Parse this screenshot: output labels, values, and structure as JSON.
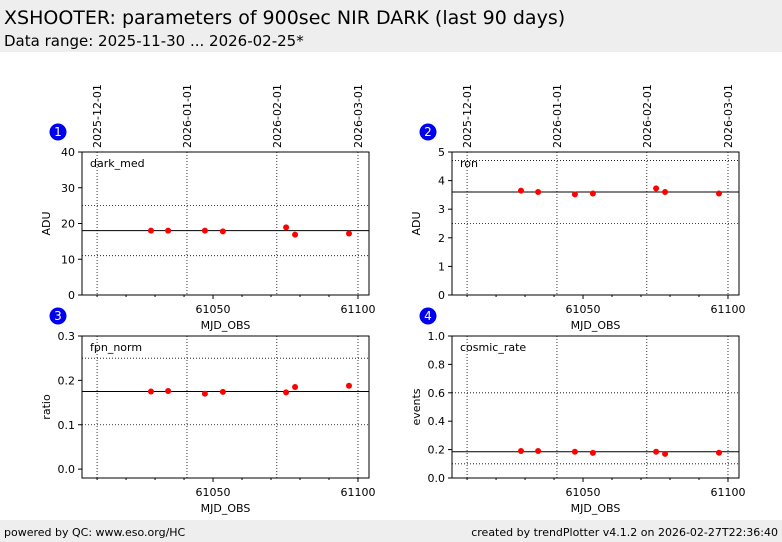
{
  "header": {
    "title": "XSHOOTER: parameters of 900sec NIR DARK (last 90 days)",
    "subtitle": "Data range: 2025-11-30 ... 2026-02-25*"
  },
  "footer": {
    "left": "powered by QC: www.eso.org/HC",
    "right": "created by trendPlotter v4.1.2 on 2026-02-27T22:36:40"
  },
  "colors": {
    "points": "#ff0000",
    "badge": "#0000ee",
    "header_bg": "#eeeeee"
  },
  "chart_data": [
    {
      "type": "scatter",
      "badge": "1",
      "label": "dark_med",
      "ylabel": "ADU",
      "xlabel": "MJD_OBS",
      "xlim": [
        61004.8,
        61103.8
      ],
      "ylim": [
        0,
        40
      ],
      "yticks": [
        0,
        10,
        20,
        30,
        40
      ],
      "ytick_labels": [
        "0",
        "10",
        "20",
        "30",
        "40"
      ],
      "xticks": [
        61050,
        61100
      ],
      "date_lines": [
        {
          "mjd": 61010,
          "label": "2025-12-01"
        },
        {
          "mjd": 61041,
          "label": "2026-01-01"
        },
        {
          "mjd": 61072,
          "label": "2026-02-01"
        },
        {
          "mjd": 61100,
          "label": "2026-03-01"
        }
      ],
      "x": [
        61028.6,
        61034.5,
        61047.2,
        61053.4,
        61075.2,
        61078.3,
        61096.9
      ],
      "y": [
        18.0,
        18.0,
        18.0,
        17.8,
        18.9,
        16.9,
        17.2
      ],
      "mean": 18.0,
      "limits": [
        11,
        25
      ]
    },
    {
      "type": "scatter",
      "badge": "2",
      "label": "ron",
      "ylabel": "ADU",
      "xlabel": "MJD_OBS",
      "xlim": [
        61004.8,
        61103.8
      ],
      "ylim": [
        0,
        5
      ],
      "yticks": [
        0,
        1,
        2,
        3,
        4,
        5
      ],
      "ytick_labels": [
        "0",
        "1",
        "2",
        "3",
        "4",
        "5"
      ],
      "xticks": [
        61050,
        61100
      ],
      "date_lines": [
        {
          "mjd": 61010,
          "label": "2025-12-01"
        },
        {
          "mjd": 61041,
          "label": "2026-01-01"
        },
        {
          "mjd": 61072,
          "label": "2026-02-01"
        },
        {
          "mjd": 61100,
          "label": "2026-03-01"
        }
      ],
      "x": [
        61028.6,
        61034.5,
        61047.2,
        61053.4,
        61075.2,
        61078.3,
        61096.9
      ],
      "y": [
        3.65,
        3.6,
        3.52,
        3.55,
        3.73,
        3.6,
        3.55
      ],
      "mean": 3.6,
      "limits": [
        2.5,
        4.7
      ]
    },
    {
      "type": "scatter",
      "badge": "3",
      "label": "fpn_norm",
      "ylabel": "ratio",
      "xlabel": "MJD_OBS",
      "xlim": [
        61004.8,
        61103.8
      ],
      "ylim": [
        -0.02,
        0.3
      ],
      "yticks": [
        0,
        0.1,
        0.2,
        0.3
      ],
      "ytick_labels": [
        "0.0",
        "0.1",
        "0.2",
        "0.3"
      ],
      "xticks": [
        61050,
        61100
      ],
      "date_lines": [
        {
          "mjd": 61010
        },
        {
          "mjd": 61041
        },
        {
          "mjd": 61072
        },
        {
          "mjd": 61100
        }
      ],
      "x": [
        61028.6,
        61034.5,
        61047.2,
        61053.4,
        61075.2,
        61078.3,
        61096.9
      ],
      "y": [
        0.175,
        0.176,
        0.17,
        0.174,
        0.173,
        0.185,
        0.188
      ],
      "mean": 0.175,
      "limits": [
        0.1,
        0.25
      ]
    },
    {
      "type": "scatter",
      "badge": "4",
      "label": "cosmic_rate",
      "ylabel": "events",
      "xlabel": "MJD_OBS",
      "xlim": [
        61004.8,
        61103.8
      ],
      "ylim": [
        0,
        1
      ],
      "yticks": [
        0,
        0.2,
        0.4,
        0.6,
        0.8,
        1.0
      ],
      "ytick_labels": [
        "0.0",
        "0.2",
        "0.4",
        "0.6",
        "0.8",
        "1.0"
      ],
      "xticks": [
        61050,
        61100
      ],
      "date_lines": [
        {
          "mjd": 61010
        },
        {
          "mjd": 61041
        },
        {
          "mjd": 61072
        },
        {
          "mjd": 61100
        }
      ],
      "x": [
        61028.6,
        61034.5,
        61047.2,
        61053.4,
        61075.2,
        61078.3,
        61096.9
      ],
      "y": [
        0.19,
        0.19,
        0.185,
        0.177,
        0.185,
        0.17,
        0.178
      ],
      "mean": 0.185,
      "limits": [
        0.1,
        0.6
      ]
    }
  ]
}
